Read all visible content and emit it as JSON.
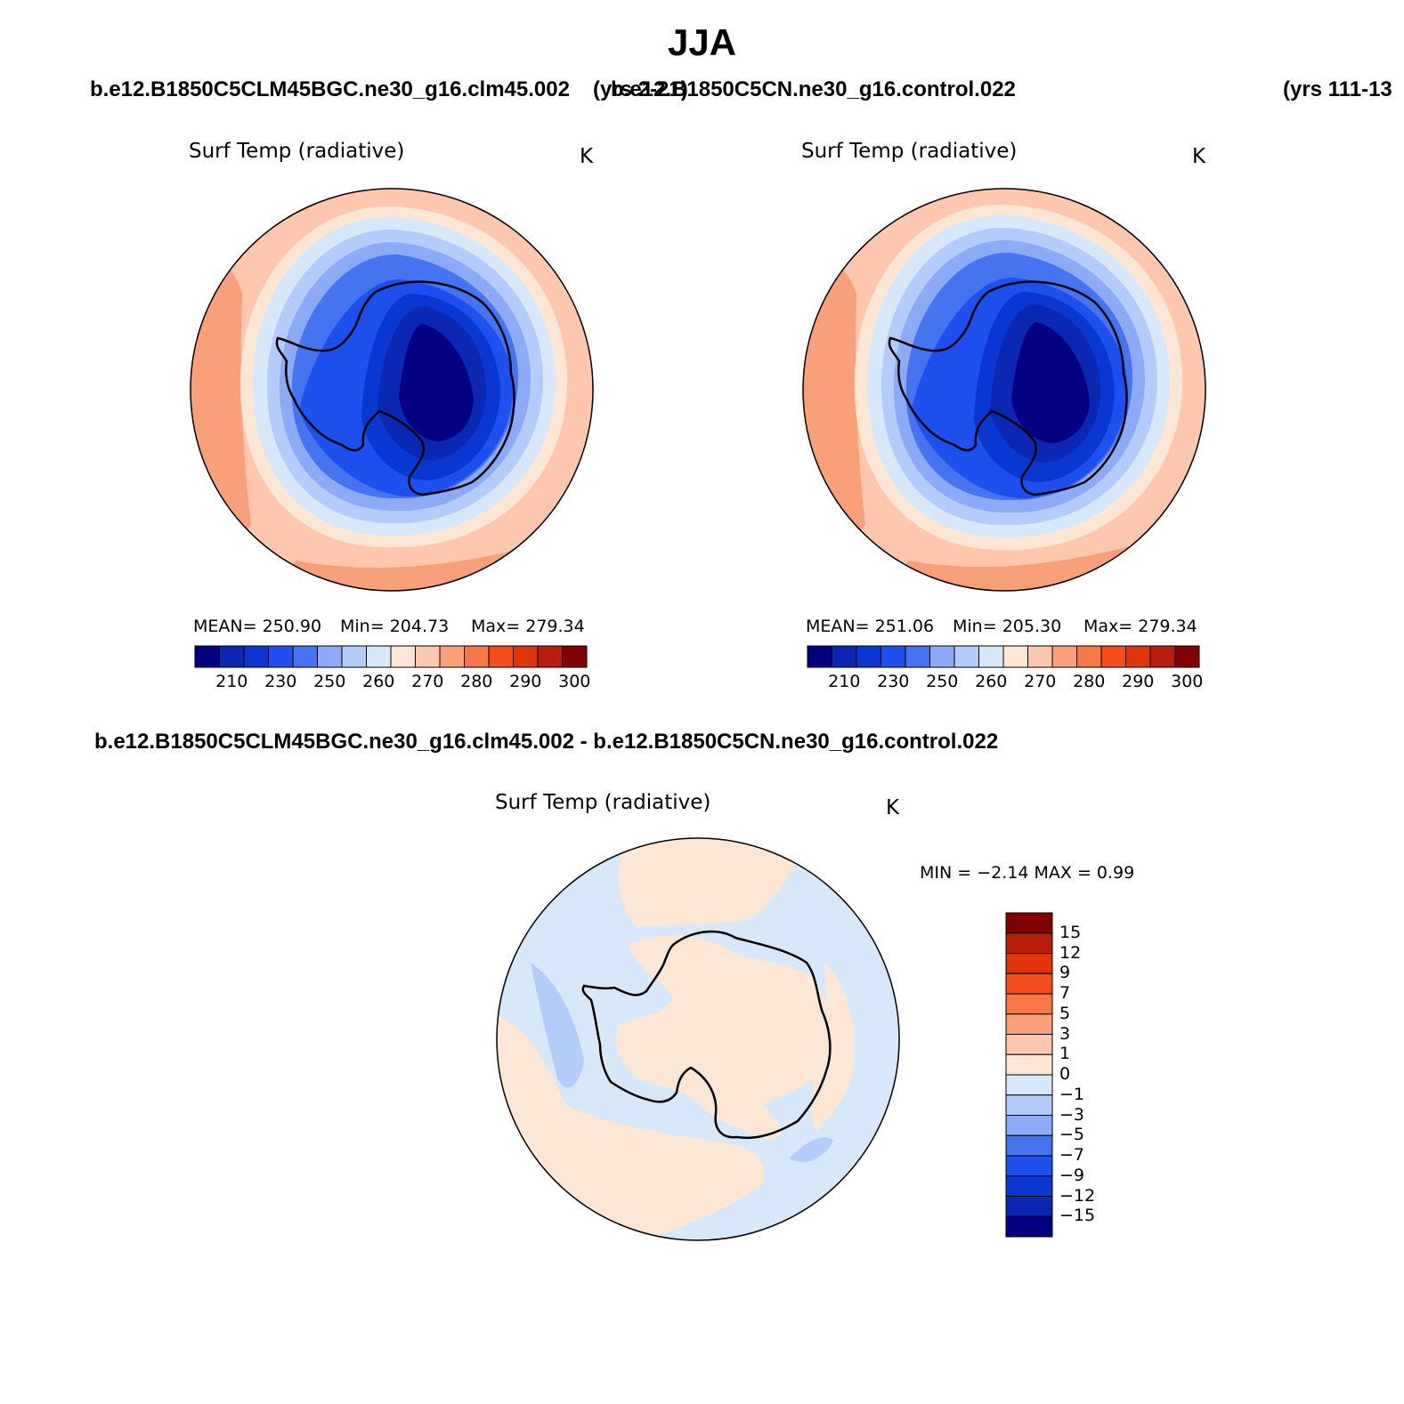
{
  "season": "JJA",
  "header": {
    "case_left": "b.e12.B1850C5CLM45BGC.ne30_g16.clm45.002",
    "years_left": "(yrs 2-21)",
    "case_right": "b.e12.B1850C5CN.ne30_g16.control.022",
    "years_right": "(yrs 111-13"
  },
  "panels": [
    {
      "title": "Surf Temp (radiative)",
      "units": "K",
      "stats": {
        "mean_label": "MEAN=",
        "mean": "250.90",
        "min_label": "Min=",
        "min": "204.73",
        "max_label": "Max=",
        "max": "279.34"
      },
      "colorbar_labels": [
        "210",
        "230",
        "250",
        "260",
        "270",
        "280",
        "290",
        "300"
      ]
    },
    {
      "title": "Surf Temp (radiative)",
      "units": "K",
      "stats": {
        "mean_label": "MEAN=",
        "mean": "251.06",
        "min_label": "Min=",
        "min": "205.30",
        "max_label": "Max=",
        "max": "279.34"
      },
      "colorbar_labels": [
        "210",
        "230",
        "250",
        "260",
        "270",
        "280",
        "290",
        "300"
      ]
    }
  ],
  "difference": {
    "case_title": "b.e12.B1850C5CLM45BGC.ne30_g16.clm45.002 - b.e12.B1850C5CN.ne30_g16.control.022",
    "title": "Surf Temp (radiative)",
    "units": "K",
    "stats": {
      "min_label": "MIN =",
      "min": "−2.14",
      "max_label": "MAX =",
      "max": "0.99"
    },
    "colorbar_labels": [
      "15",
      "12",
      "9",
      "7",
      "5",
      "3",
      "1",
      "0",
      "−1",
      "−3",
      "−5",
      "−7",
      "−9",
      "−12",
      "−15"
    ]
  },
  "colors": {
    "abs_scale": [
      "#000080",
      "#0a28b4",
      "#0a37d2",
      "#1e50f0",
      "#4673f0",
      "#8caaf5",
      "#b4ccfa",
      "#d7e8fa",
      "#fde7d4",
      "#fcc7ad",
      "#f99f7a",
      "#f87746",
      "#f54d1e",
      "#e0350a",
      "#b91e0a",
      "#820000"
    ],
    "diff_scale": [
      "#820000",
      "#b91e0a",
      "#e0350a",
      "#f54d1e",
      "#f87746",
      "#f99f7a",
      "#fcc7ad",
      "#fde7d4",
      "#d7e8fa",
      "#b4ccfa",
      "#8caaf5",
      "#4673f0",
      "#1e50f0",
      "#0a37d2",
      "#0a28b4",
      "#000080"
    ]
  }
}
